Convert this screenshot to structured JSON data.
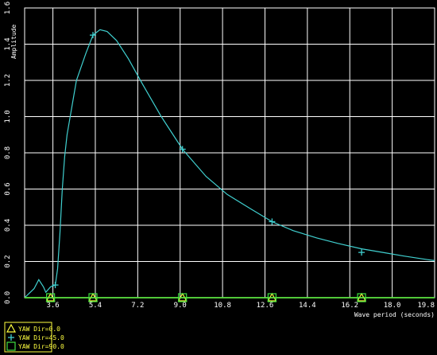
{
  "chart_data": {
    "type": "line",
    "xlabel": "Wave period (seconds)",
    "ylabel": "Amplitude",
    "xlim": [
      2.4,
      19.8
    ],
    "ylim": [
      0.0,
      1.6
    ],
    "x_ticks": [
      "3.6",
      "5.4",
      "7.2",
      "9.0",
      "10.8",
      "12.6",
      "14.4",
      "16.2",
      "18.0",
      "19.8"
    ],
    "y_ticks": [
      "0.0",
      "0.2",
      "0.4",
      "0.6",
      "0.8",
      "1.0",
      "1.2",
      "1.4",
      "1.6"
    ],
    "grid": true,
    "legend_position": "bottom-left",
    "series": [
      {
        "name": "YAW Dir=0.0",
        "color": "#ffff40",
        "marker": "triangle",
        "x": [
          2.4,
          3.5,
          5.3,
          9.1,
          12.9,
          16.7,
          19.8
        ],
        "y": [
          0.0,
          0.0,
          0.0,
          0.0,
          0.0,
          0.0,
          0.0
        ]
      },
      {
        "name": "YAW Dir=45.0",
        "color": "#40d0d0",
        "marker": "plus",
        "x": [
          2.4,
          2.8,
          3.0,
          3.2,
          3.3,
          3.5,
          3.7,
          3.8,
          3.9,
          4.0,
          4.1,
          4.2,
          4.4,
          4.6,
          5.0,
          5.3,
          5.6,
          5.9,
          6.3,
          6.8,
          7.4,
          8.2,
          9.1,
          10.1,
          11.0,
          12.0,
          12.9,
          13.8,
          14.8,
          15.7,
          16.7,
          17.6,
          18.5,
          19.5,
          19.8
        ],
        "y": [
          0.0,
          0.05,
          0.1,
          0.06,
          0.03,
          0.06,
          0.07,
          0.16,
          0.36,
          0.6,
          0.78,
          0.9,
          1.05,
          1.2,
          1.35,
          1.45,
          1.48,
          1.47,
          1.42,
          1.32,
          1.18,
          1.0,
          0.82,
          0.67,
          0.57,
          0.49,
          0.42,
          0.37,
          0.33,
          0.3,
          0.27,
          0.25,
          0.23,
          0.21,
          0.205
        ],
        "marker_x": [
          3.7,
          5.3,
          9.1,
          12.9,
          16.7
        ],
        "marker_y": [
          0.07,
          1.45,
          0.82,
          0.42,
          0.25
        ]
      },
      {
        "name": "YAW Dir=90.0",
        "color": "#40e040",
        "marker": "square",
        "x": [
          2.4,
          3.5,
          5.3,
          9.1,
          12.9,
          16.7,
          19.8
        ],
        "y": [
          0.0,
          0.0,
          0.0,
          0.0,
          0.0,
          0.0,
          0.0
        ]
      }
    ]
  }
}
